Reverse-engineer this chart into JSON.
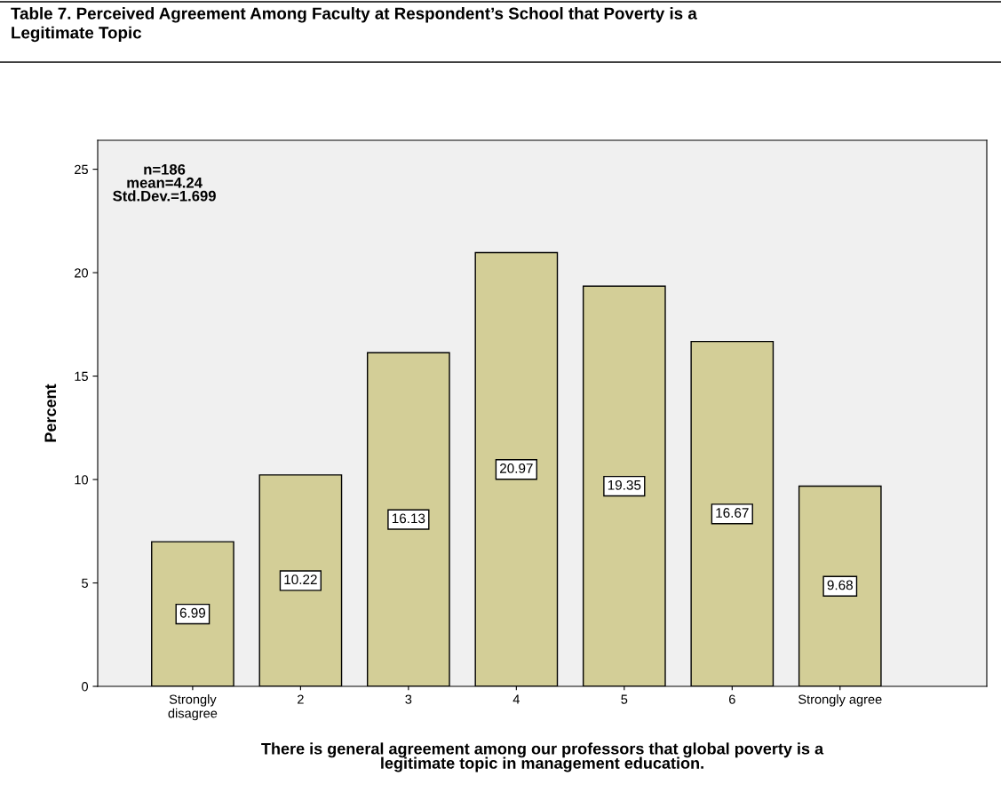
{
  "chart_data": {
    "type": "bar",
    "title": "Table 7. Perceived Agreement Among Faculty at Respondent’s School that Poverty is a\nLegitimate Topic",
    "xlabel": "There is general agreement among our professors that global poverty is a\nlegitimate topic in management education.",
    "ylabel": "Percent",
    "annotations": [
      "n=186\nmean=4.24\nStd.Dev.=1.699"
    ],
    "categories": [
      "Strongly\ndisagree",
      "2",
      "3",
      "4",
      "5",
      "6",
      "Strongly agree"
    ],
    "values": [
      6.99,
      10.22,
      16.13,
      20.97,
      19.35,
      16.67,
      9.68
    ],
    "color": "#d3ce97",
    "ylim": [
      0,
      26.4
    ],
    "yticks": [
      0,
      5,
      10,
      15,
      20,
      25
    ],
    "data_labels": true,
    "grid": false,
    "legend": false
  }
}
